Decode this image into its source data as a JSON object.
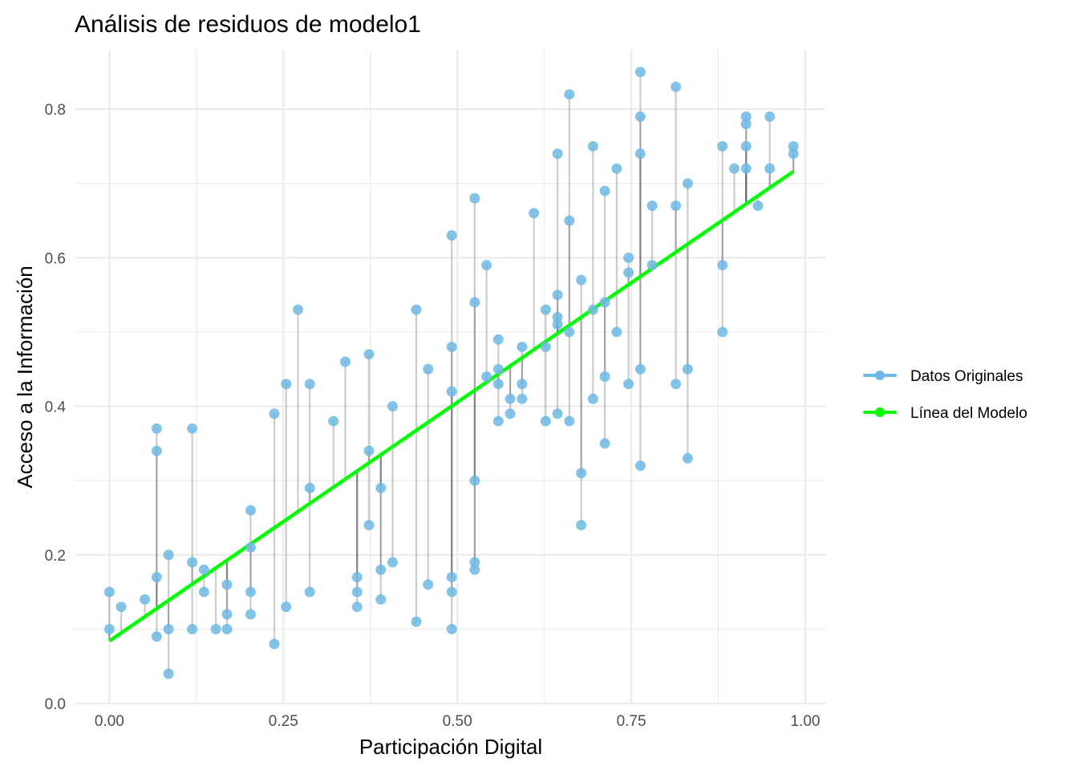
{
  "chart_data": {
    "type": "scatter",
    "title": "Análisis de residuos de modelo1",
    "xlabel": "Participación Digital",
    "ylabel": "Acceso a la Información",
    "xlim": [
      -0.05,
      1.03
    ],
    "ylim": [
      0.0,
      0.88
    ],
    "x_ticks": [
      0.0,
      0.25,
      0.5,
      0.75,
      1.0
    ],
    "x_tick_labels": [
      "0.00",
      "0.25",
      "0.50",
      "0.75",
      "1.00"
    ],
    "y_ticks": [
      0.0,
      0.2,
      0.4,
      0.6,
      0.8
    ],
    "y_tick_labels": [
      "0.0",
      "0.2",
      "0.4",
      "0.6",
      "0.8"
    ],
    "grid": true,
    "legend_position": "right",
    "colors": {
      "points": "#6EB9E4",
      "model_line": "#00FF00",
      "residual_line": "#000000",
      "grid": "#EBEBEB"
    },
    "model_line": {
      "intercept": 0.084,
      "slope": 0.643,
      "x_range": [
        0.0,
        0.983
      ]
    },
    "legend": [
      {
        "label": "Datos Originales",
        "color": "#6EB9E4"
      },
      {
        "label": "Línea del Modelo",
        "color": "#00FF00"
      }
    ],
    "series": [
      {
        "name": "Datos Originales",
        "points": [
          [
            0.0,
            0.15
          ],
          [
            0.0,
            0.1
          ],
          [
            0.017,
            0.13
          ],
          [
            0.051,
            0.14
          ],
          [
            0.068,
            0.37
          ],
          [
            0.068,
            0.34
          ],
          [
            0.068,
            0.17
          ],
          [
            0.068,
            0.09
          ],
          [
            0.085,
            0.2
          ],
          [
            0.085,
            0.1
          ],
          [
            0.085,
            0.04
          ],
          [
            0.119,
            0.37
          ],
          [
            0.119,
            0.19
          ],
          [
            0.119,
            0.1
          ],
          [
            0.136,
            0.18
          ],
          [
            0.136,
            0.15
          ],
          [
            0.153,
            0.1
          ],
          [
            0.169,
            0.16
          ],
          [
            0.169,
            0.12
          ],
          [
            0.169,
            0.1
          ],
          [
            0.203,
            0.26
          ],
          [
            0.203,
            0.21
          ],
          [
            0.203,
            0.15
          ],
          [
            0.203,
            0.12
          ],
          [
            0.237,
            0.39
          ],
          [
            0.237,
            0.08
          ],
          [
            0.254,
            0.43
          ],
          [
            0.254,
            0.13
          ],
          [
            0.271,
            0.53
          ],
          [
            0.288,
            0.43
          ],
          [
            0.288,
            0.29
          ],
          [
            0.288,
            0.15
          ],
          [
            0.322,
            0.38
          ],
          [
            0.339,
            0.46
          ],
          [
            0.356,
            0.17
          ],
          [
            0.356,
            0.15
          ],
          [
            0.356,
            0.13
          ],
          [
            0.373,
            0.47
          ],
          [
            0.373,
            0.34
          ],
          [
            0.373,
            0.24
          ],
          [
            0.39,
            0.29
          ],
          [
            0.39,
            0.18
          ],
          [
            0.39,
            0.14
          ],
          [
            0.407,
            0.4
          ],
          [
            0.407,
            0.19
          ],
          [
            0.441,
            0.53
          ],
          [
            0.441,
            0.11
          ],
          [
            0.458,
            0.45
          ],
          [
            0.458,
            0.16
          ],
          [
            0.492,
            0.63
          ],
          [
            0.492,
            0.48
          ],
          [
            0.492,
            0.42
          ],
          [
            0.492,
            0.17
          ],
          [
            0.492,
            0.15
          ],
          [
            0.492,
            0.1
          ],
          [
            0.525,
            0.68
          ],
          [
            0.525,
            0.54
          ],
          [
            0.525,
            0.3
          ],
          [
            0.525,
            0.19
          ],
          [
            0.525,
            0.18
          ],
          [
            0.542,
            0.59
          ],
          [
            0.542,
            0.44
          ],
          [
            0.559,
            0.49
          ],
          [
            0.559,
            0.45
          ],
          [
            0.559,
            0.43
          ],
          [
            0.559,
            0.38
          ],
          [
            0.576,
            0.41
          ],
          [
            0.576,
            0.39
          ],
          [
            0.593,
            0.48
          ],
          [
            0.593,
            0.43
          ],
          [
            0.593,
            0.41
          ],
          [
            0.61,
            0.66
          ],
          [
            0.627,
            0.53
          ],
          [
            0.627,
            0.48
          ],
          [
            0.627,
            0.38
          ],
          [
            0.644,
            0.74
          ],
          [
            0.644,
            0.55
          ],
          [
            0.644,
            0.52
          ],
          [
            0.644,
            0.51
          ],
          [
            0.644,
            0.39
          ],
          [
            0.661,
            0.82
          ],
          [
            0.661,
            0.65
          ],
          [
            0.661,
            0.5
          ],
          [
            0.661,
            0.38
          ],
          [
            0.678,
            0.57
          ],
          [
            0.678,
            0.31
          ],
          [
            0.678,
            0.24
          ],
          [
            0.695,
            0.75
          ],
          [
            0.695,
            0.53
          ],
          [
            0.695,
            0.41
          ],
          [
            0.712,
            0.69
          ],
          [
            0.712,
            0.54
          ],
          [
            0.712,
            0.44
          ],
          [
            0.712,
            0.35
          ],
          [
            0.729,
            0.72
          ],
          [
            0.729,
            0.5
          ],
          [
            0.746,
            0.6
          ],
          [
            0.746,
            0.58
          ],
          [
            0.746,
            0.43
          ],
          [
            0.763,
            0.85
          ],
          [
            0.763,
            0.79
          ],
          [
            0.763,
            0.74
          ],
          [
            0.763,
            0.45
          ],
          [
            0.763,
            0.32
          ],
          [
            0.78,
            0.67
          ],
          [
            0.78,
            0.59
          ],
          [
            0.814,
            0.83
          ],
          [
            0.814,
            0.67
          ],
          [
            0.814,
            0.43
          ],
          [
            0.831,
            0.7
          ],
          [
            0.831,
            0.45
          ],
          [
            0.831,
            0.33
          ],
          [
            0.881,
            0.75
          ],
          [
            0.881,
            0.59
          ],
          [
            0.881,
            0.5
          ],
          [
            0.898,
            0.72
          ],
          [
            0.915,
            0.79
          ],
          [
            0.915,
            0.78
          ],
          [
            0.915,
            0.75
          ],
          [
            0.915,
            0.72
          ],
          [
            0.932,
            0.67
          ],
          [
            0.949,
            0.79
          ],
          [
            0.949,
            0.72
          ],
          [
            0.983,
            0.75
          ],
          [
            0.983,
            0.74
          ]
        ]
      },
      {
        "name": "Línea del Modelo",
        "x": [
          0.0,
          0.983
        ],
        "y": [
          0.084,
          0.716
        ]
      }
    ]
  }
}
